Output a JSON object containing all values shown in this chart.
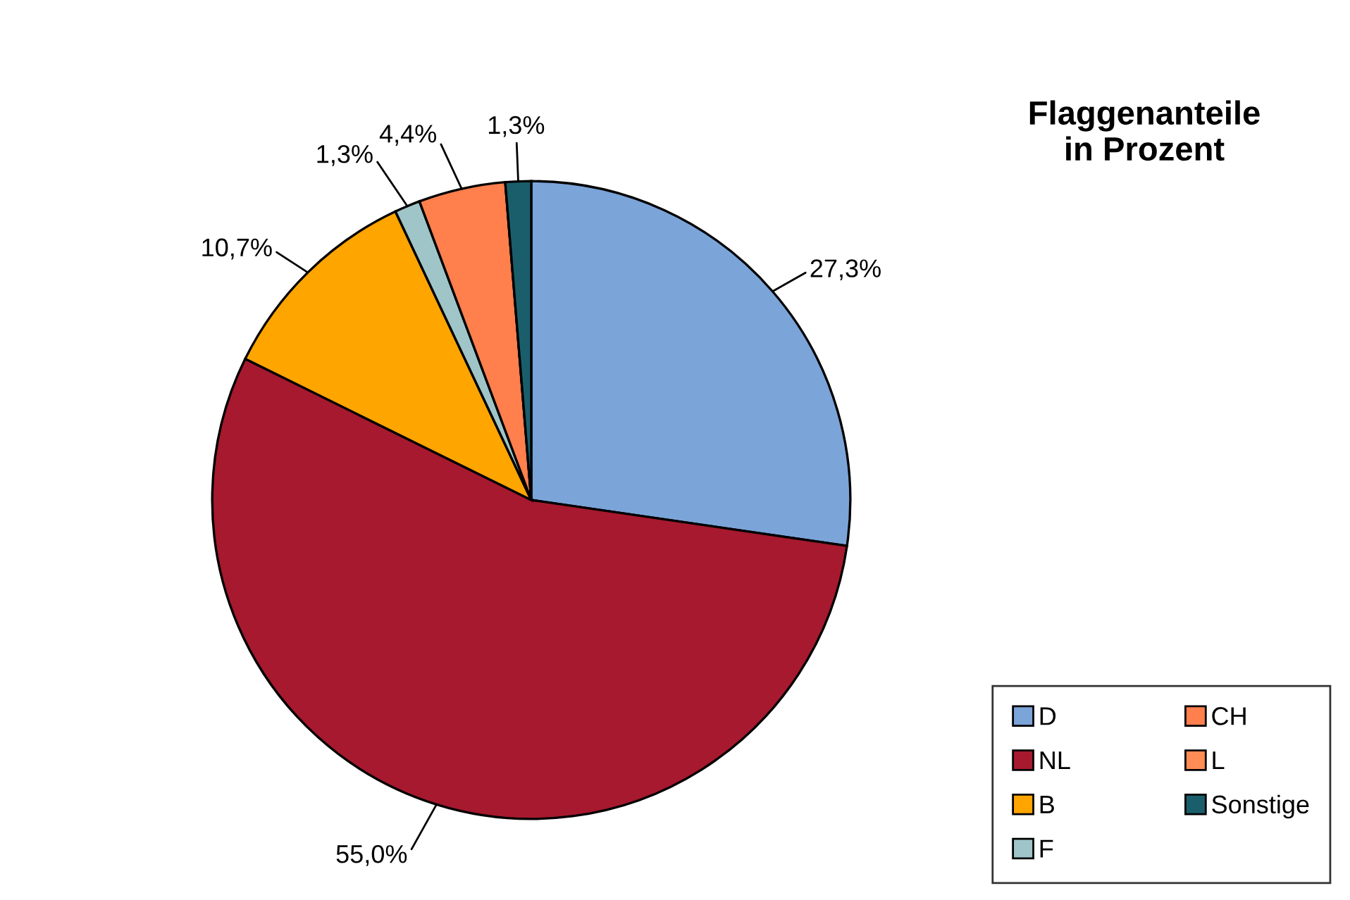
{
  "chart_data": {
    "type": "pie",
    "title": "Flaggenanteile\nin Prozent",
    "categories": [
      "D",
      "NL",
      "B",
      "F",
      "CH",
      "L",
      "Sonstige"
    ],
    "values": [
      27.3,
      55.0,
      10.7,
      1.3,
      4.4,
      0,
      1.3
    ],
    "value_labels": [
      "27,3%",
      "55,0%",
      "10,7%",
      "1,3%",
      "4,4%",
      null,
      "1,3%"
    ],
    "colors": [
      "#7ba4d9",
      "#a6192e",
      "#ffa500",
      "#9fc5c8",
      "#ff7f4d",
      "#ff8c55",
      "#1b5e6b"
    ],
    "legend": "bottom right"
  }
}
